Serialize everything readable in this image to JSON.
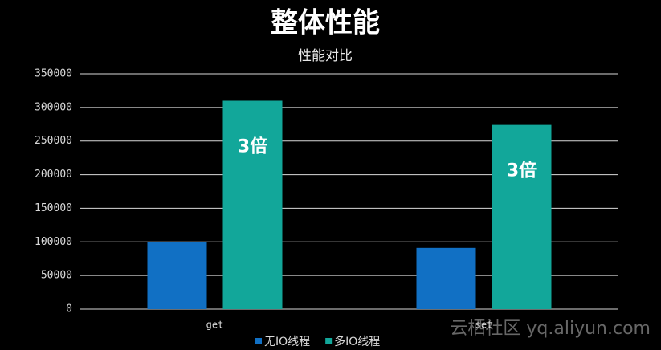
{
  "chart_data": {
    "type": "bar",
    "title": "整体性能",
    "subtitle": "性能对比",
    "categories": [
      "get",
      "set"
    ],
    "series": [
      {
        "name": "无IO线程",
        "color": "#1170c4",
        "values": [
          100000,
          91000
        ]
      },
      {
        "name": "多IO线程",
        "color": "#12a79a",
        "values": [
          310000,
          274000
        ],
        "annotations": [
          "3倍",
          "3倍"
        ]
      }
    ],
    "ylim": [
      0,
      350000
    ],
    "yticks": [
      0,
      50000,
      100000,
      150000,
      200000,
      250000,
      300000,
      350000
    ],
    "grid": true,
    "legend": "bottom"
  },
  "watermark": "云栖社区 yq.aliyun.com"
}
